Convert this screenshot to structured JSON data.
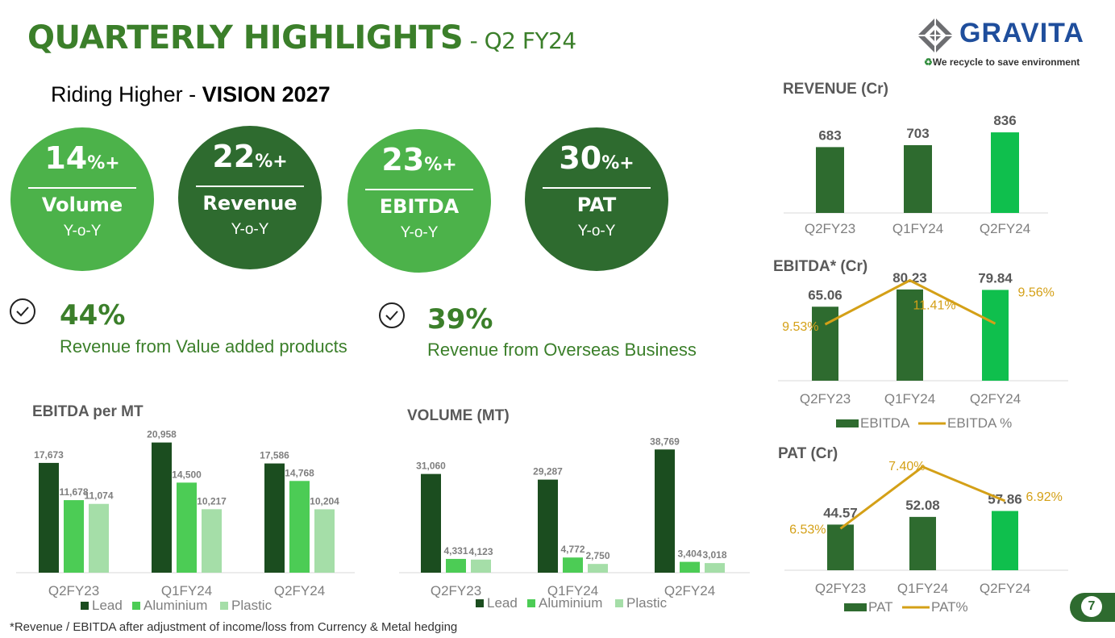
{
  "header": {
    "title": "QUARTERLY HIGHLIGHTS",
    "title_sep": " - ",
    "subtitle": "Q2 FY24"
  },
  "logo": {
    "name": "GRAVITA",
    "tagline": "We recycle to save environment",
    "recycle_icon": "recycle-icon"
  },
  "tagline": {
    "prefix": "Riding Higher - ",
    "emphasis": "VISION 2027"
  },
  "circles": [
    {
      "value": "14",
      "suffix": "%+",
      "label": "Volume",
      "sub": "Y-o-Y",
      "color": "#4cb24a"
    },
    {
      "value": "22",
      "suffix": "%+",
      "label": "Revenue",
      "sub": "Y-o-Y",
      "color": "#2e6b2f"
    },
    {
      "value": "23",
      "suffix": "%+",
      "label": "EBITDA",
      "sub": "Y-o-Y",
      "color": "#4cb24a"
    },
    {
      "value": "30",
      "suffix": "%+",
      "label": "PAT",
      "sub": "Y-o-Y",
      "color": "#2e6b2f"
    }
  ],
  "highlights": [
    {
      "value": "44%",
      "text": "Revenue from Value added products"
    },
    {
      "value": "39%",
      "text": "Revenue from Overseas Business"
    }
  ],
  "footnote": "*Revenue / EBITDA after adjustment of income/loss from Currency & Metal hedging",
  "page_number": "7",
  "colors": {
    "dark_green": "#2e6b2f",
    "bright_green": "#0fbf4d",
    "lead": "#1b4d1f",
    "aluminium": "#4ccc55",
    "plastic": "#a5dea8",
    "gold": "#d4a017",
    "title_green": "#3b7f2a"
  },
  "chart_data": [
    {
      "id": "ebitda_per_mt",
      "type": "bar",
      "title": "EBITDA per MT",
      "categories": [
        "Q2FY23",
        "Q1FY24",
        "Q2FY24"
      ],
      "series": [
        {
          "name": "Lead",
          "values": [
            17673,
            20958,
            17586
          ],
          "labels": [
            "17,673",
            "20,958",
            "17,586"
          ]
        },
        {
          "name": "Aluminium",
          "values": [
            11678,
            14500,
            14768
          ],
          "labels": [
            "11,678",
            "14,500",
            "14,768"
          ]
        },
        {
          "name": "Plastic",
          "values": [
            11074,
            10217,
            10204
          ],
          "labels": [
            "11,074",
            "10,217",
            "10,204"
          ]
        }
      ]
    },
    {
      "id": "volume_mt",
      "type": "bar",
      "title": "VOLUME (MT)",
      "categories": [
        "Q2FY23",
        "Q1FY24",
        "Q2FY24"
      ],
      "series": [
        {
          "name": "Lead",
          "values": [
            31060,
            29287,
            38769
          ],
          "labels": [
            "31,060",
            "29,287",
            "38,769"
          ]
        },
        {
          "name": "Aluminium",
          "values": [
            4331,
            4772,
            3404
          ],
          "labels": [
            "4,331",
            "4,772",
            "3,404"
          ]
        },
        {
          "name": "Plastic",
          "values": [
            4123,
            2750,
            3018
          ],
          "labels": [
            "4,123",
            "2,750",
            "3,018"
          ]
        }
      ]
    },
    {
      "id": "revenue",
      "type": "bar",
      "title": "REVENUE (Cr)",
      "categories": [
        "Q2FY23",
        "Q1FY24",
        "Q2FY24"
      ],
      "values": [
        683,
        703,
        836
      ],
      "labels": [
        "683",
        "703",
        "836"
      ]
    },
    {
      "id": "ebitda",
      "type": "bar",
      "title": "EBITDA* (Cr)",
      "categories": [
        "Q2FY23",
        "Q1FY24",
        "Q2FY24"
      ],
      "series": [
        {
          "name": "EBITDA",
          "values": [
            65.06,
            80.23,
            79.84
          ],
          "labels": [
            "65.06",
            "80.23",
            "79.84"
          ]
        },
        {
          "name": "EBITDA %",
          "type": "line",
          "values": [
            9.53,
            11.41,
            9.56
          ],
          "labels": [
            "9.53%",
            "11.41%",
            "9.56%"
          ]
        }
      ]
    },
    {
      "id": "pat",
      "type": "bar",
      "title": "PAT (Cr)",
      "categories": [
        "Q2FY23",
        "Q1FY24",
        "Q2FY24"
      ],
      "series": [
        {
          "name": "PAT",
          "values": [
            44.57,
            52.08,
            57.86
          ],
          "labels": [
            "44.57",
            "52.08",
            "57.86"
          ]
        },
        {
          "name": "PAT%",
          "type": "line",
          "values": [
            6.53,
            7.4,
            6.92
          ],
          "labels": [
            "6.53%",
            "7.40%",
            "6.92%"
          ]
        }
      ]
    }
  ]
}
